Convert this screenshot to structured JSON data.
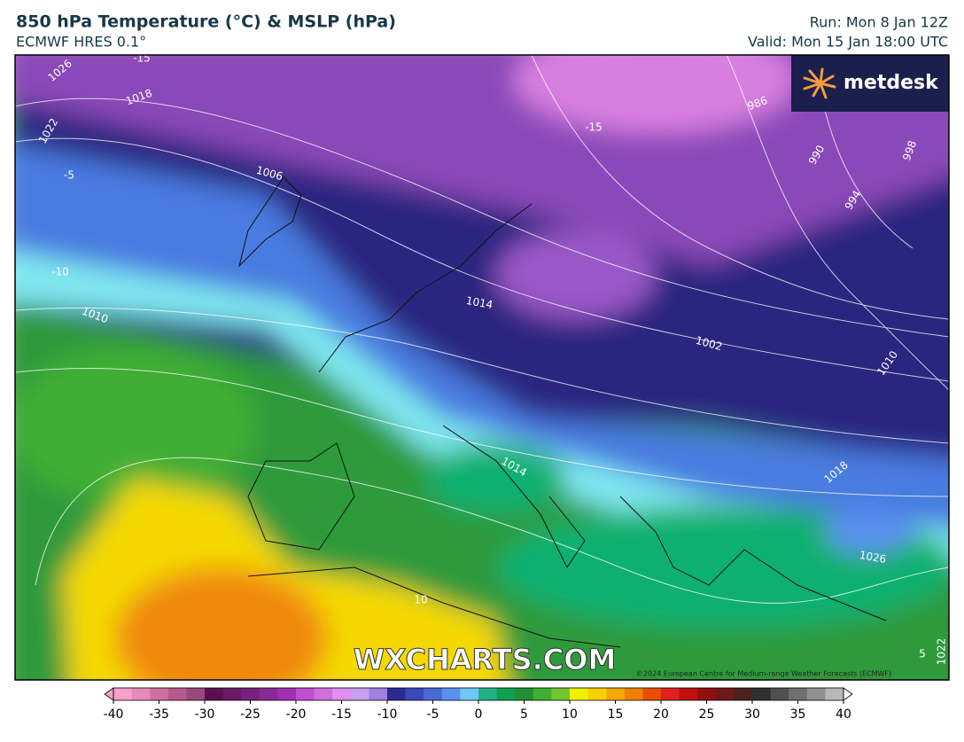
{
  "header": {
    "title": "850 hPa Temperature (°C) & MSLP (hPa)",
    "subtitle": "ECMWF HRES 0.1°",
    "run": "Run: Mon 8 Jan 12Z",
    "valid": "Valid: Mon 15 Jan 18:00 UTC"
  },
  "logo": "metdesk",
  "watermark": "WXCHARTS.COM",
  "copyright": "©2024 European Centre for Medium-range Weather Forecasts (ECMWF)",
  "map": {
    "contour_labels": [
      "1026",
      "1018",
      "1022",
      "-5",
      "1006",
      "-10",
      "1010",
      "1014",
      "1002",
      "986",
      "990",
      "994",
      "998",
      "1010",
      "1018",
      "1026",
      "1014",
      "10",
      "-15",
      "-15",
      "5",
      "1022"
    ]
  },
  "colorbar": {
    "range": [
      -40,
      40
    ],
    "ticks": [
      -40,
      -35,
      -30,
      -25,
      -20,
      -15,
      -10,
      -5,
      0,
      5,
      10,
      15,
      20,
      25,
      30,
      35,
      40
    ],
    "colors": [
      "#f7a0c8",
      "#e88ab8",
      "#d070a0",
      "#b85a8c",
      "#9a4878",
      "#5a1050",
      "#6a1868",
      "#7a2080",
      "#8a2898",
      "#a030b0",
      "#c050d0",
      "#d070e0",
      "#e090f0",
      "#c8a0f0",
      "#a080e0",
      "#2a2a90",
      "#3a4ab8",
      "#4a6ad8",
      "#5a90f0",
      "#70c8f8",
      "#20b088",
      "#10a050",
      "#209030",
      "#40b030",
      "#70c830",
      "#f0f000",
      "#f8d000",
      "#f8a800",
      "#f08000",
      "#e85000",
      "#e02020",
      "#c01010",
      "#901010",
      "#701818",
      "#502020",
      "#303030",
      "#505050",
      "#707070",
      "#909090",
      "#b8b8b8"
    ]
  }
}
